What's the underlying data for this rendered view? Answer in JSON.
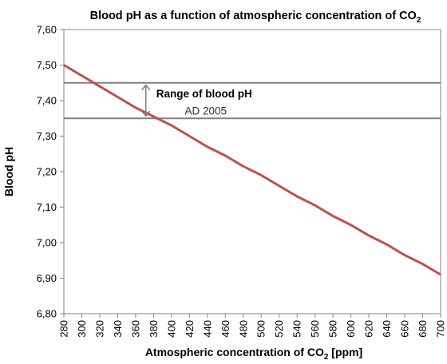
{
  "chart_data": {
    "type": "line",
    "title": "Blood pH as a function of atmospheric concentration of CO",
    "title_subscript": "2",
    "xlabel": "Atmospheric concentration of CO",
    "xlabel_subscript": "2",
    "xlabel_unit": " [ppm]",
    "ylabel": "Blood pH",
    "xlim": [
      280,
      700
    ],
    "ylim": [
      6.8,
      7.6
    ],
    "x_ticks": [
      "280",
      "300",
      "320",
      "340",
      "360",
      "380",
      "400",
      "420",
      "440",
      "460",
      "480",
      "500",
      "520",
      "540",
      "560",
      "580",
      "600",
      "620",
      "640",
      "660",
      "680",
      "700"
    ],
    "y_ticks": [
      "6,80",
      "6,90",
      "7,00",
      "7,10",
      "7,20",
      "7,30",
      "7,40",
      "7,50",
      "7,60"
    ],
    "grid": false,
    "series": [
      {
        "color": "#c0504d",
        "x": [
          280,
          300,
          320,
          340,
          360,
          380,
          400,
          420,
          440,
          460,
          480,
          500,
          520,
          540,
          560,
          580,
          600,
          620,
          640,
          660,
          680,
          700
        ],
        "y": [
          7.5,
          7.47,
          7.44,
          7.41,
          7.38,
          7.355,
          7.33,
          7.3,
          7.27,
          7.245,
          7.215,
          7.19,
          7.16,
          7.13,
          7.105,
          7.075,
          7.05,
          7.02,
          6.995,
          6.965,
          6.94,
          6.91
        ]
      }
    ],
    "reference_lines": [
      {
        "y": 7.45,
        "color": "#808080"
      },
      {
        "y": 7.35,
        "color": "#808080"
      }
    ],
    "annotation": {
      "label": "Range of blood pH",
      "sublabel": "AD 2005",
      "x": 520,
      "y_range": [
        7.35,
        7.45
      ]
    }
  }
}
